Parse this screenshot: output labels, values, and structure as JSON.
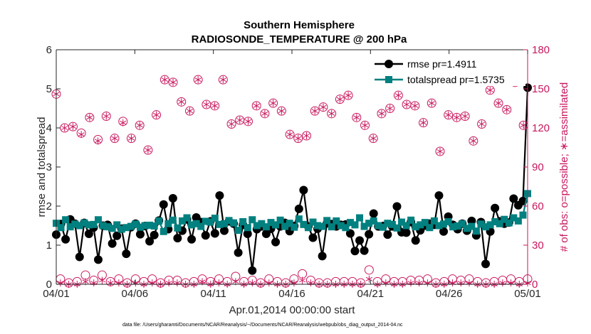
{
  "chart_data": {
    "type": "line",
    "title": "Southern Hemisphere",
    "subtitle": "RADIOSONDE_TEMPERATURE @ 200 hPa",
    "xlabel": "Apr.01,2014 00:00:00 start",
    "ylabel_left": "rmse and totalspread",
    "ylabel_right": "# of obs: o=possible; ∗=assimilated",
    "footnote": "data file: /Users/gharamti/Documents/NCAR/Reanalysis/~/Documents/NCAR/Reanalysis/webpub/obs_diag_output_2014-04.nc",
    "x_ticks": [
      "04/01",
      "04/06",
      "04/11",
      "04/16",
      "04/21",
      "04/26",
      "05/01"
    ],
    "x_tick_days": [
      0,
      5,
      10,
      15,
      20,
      25,
      30
    ],
    "xlim_days": [
      0,
      30
    ],
    "x_step_days": 0.25,
    "ylim_left": [
      0,
      6
    ],
    "y_ticks_left": [
      0,
      1,
      2,
      3,
      4,
      5,
      6
    ],
    "ylim_right": [
      0,
      180
    ],
    "y_ticks_right": [
      0,
      30,
      60,
      90,
      120,
      150,
      180
    ],
    "colors": {
      "rmse": "#000000",
      "totalspread": "#00807f",
      "obs": "#c8175d",
      "axis": "#262626"
    },
    "legend": {
      "placement": "top-right",
      "entries": [
        "rmse pr=1.4911",
        "totalspread pr=1.5735"
      ]
    },
    "series": [
      {
        "name": "rmse",
        "axis": "left",
        "values": [
          1.27,
          1.54,
          1.15,
          1.66,
          1.55,
          0.7,
          1.57,
          1.29,
          1.45,
          0.63,
          1.5,
          1.52,
          1.04,
          1.24,
          1.42,
          0.78,
          1.46,
          1.55,
          1.28,
          1.49,
          1.1,
          1.26,
          1.63,
          2.04,
          1.41,
          2.2,
          1.18,
          1.37,
          1.66,
          1.15,
          1.71,
          1.59,
          1.25,
          1.61,
          1.3,
          2.27,
          1.37,
          1.61,
          1.55,
          0.81,
          1.52,
          1.29,
          0.35,
          1.41,
          1.48,
          1.29,
          1.42,
          1.08,
          1.48,
          1.57,
          1.36,
          1.49,
          1.93,
          2.41,
          1.48,
          1.19,
          1.42,
          0.72,
          1.56,
          1.54,
          1.48,
          1.52,
          1.53,
          1.3,
          0.85,
          1.12,
          0.86,
          1.28,
          1.81,
          1.48,
          1.49,
          1.27,
          1.48,
          1.99,
          1.33,
          1.32,
          1.59,
          1.12,
          1.38,
          1.5,
          1.55,
          1.52,
          2.27,
          1.35,
          1.73,
          1.52,
          1.41,
          1.55,
          1.37,
          1.62,
          1.25,
          1.59,
          0.52,
          1.35,
          1.95,
          1.61,
          1.55,
          1.58,
          2.19,
          2.02,
          2.13,
          5.03
        ]
      },
      {
        "name": "totalspread",
        "axis": "left",
        "values": [
          1.56,
          1.45,
          1.65,
          1.47,
          1.54,
          1.5,
          1.57,
          1.52,
          1.53,
          1.65,
          1.5,
          1.47,
          1.43,
          1.52,
          1.41,
          1.45,
          1.48,
          1.54,
          1.46,
          1.5,
          1.51,
          1.49,
          1.62,
          1.35,
          1.55,
          1.64,
          1.44,
          1.62,
          1.7,
          1.52,
          1.55,
          1.48,
          1.61,
          1.59,
          1.69,
          1.53,
          1.55,
          1.63,
          1.57,
          1.38,
          1.6,
          1.45,
          1.65,
          1.5,
          1.55,
          1.47,
          1.58,
          1.52,
          1.64,
          1.48,
          1.56,
          1.46,
          1.67,
          1.53,
          1.45,
          1.59,
          1.5,
          1.48,
          1.63,
          1.47,
          1.62,
          1.5,
          1.45,
          1.58,
          1.52,
          1.7,
          1.48,
          1.56,
          1.62,
          1.5,
          1.46,
          1.56,
          1.53,
          1.44,
          1.59,
          1.5,
          1.64,
          1.47,
          1.52,
          1.58,
          1.45,
          1.62,
          1.5,
          1.54,
          1.6,
          1.47,
          1.49,
          1.55,
          1.43,
          1.48,
          1.36,
          1.54,
          1.47,
          1.52,
          1.6,
          1.55,
          1.66,
          1.57,
          1.7,
          1.62,
          1.77,
          2.32
        ]
      },
      {
        "name": "possible",
        "axis": "right",
        "marker": "circle",
        "values": [
          146,
          4,
          120,
          1,
          121,
          2,
          116,
          7,
          128,
          3,
          111,
          7,
          129,
          2,
          112,
          4,
          125,
          1,
          112,
          4,
          122,
          2,
          103,
          4,
          130,
          1,
          157,
          3,
          155,
          3,
          140,
          1,
          133,
          2,
          157,
          4,
          138,
          2,
          137,
          4,
          157,
          2,
          123,
          6,
          126,
          2,
          125,
          3,
          137,
          1,
          131,
          4,
          139,
          2,
          133,
          1,
          115,
          4,
          112,
          8,
          114,
          3,
          133,
          1,
          136,
          1,
          131,
          2,
          142,
          2,
          145,
          2,
          128,
          1,
          122,
          11,
          112,
          2,
          131,
          4,
          135,
          2,
          145,
          2,
          138,
          3,
          137,
          3,
          124,
          4,
          139,
          1,
          102,
          2,
          130,
          4,
          128,
          3,
          129,
          4,
          110,
          2,
          123,
          1,
          149,
          2,
          139,
          3,
          134,
          4,
          155,
          2,
          122,
          4
        ]
      },
      {
        "name": "assimilated",
        "axis": "right",
        "marker": "star",
        "values": [
          146,
          1,
          120,
          0,
          121,
          0,
          115,
          2,
          128,
          1,
          110,
          3,
          129,
          1,
          112,
          1,
          124,
          0,
          112,
          1,
          122,
          0,
          103,
          1,
          130,
          0,
          157,
          1,
          155,
          1,
          140,
          0,
          133,
          0,
          157,
          2,
          138,
          0,
          137,
          1,
          157,
          0,
          123,
          2,
          126,
          0,
          125,
          1,
          137,
          0,
          131,
          1,
          139,
          0,
          133,
          0,
          115,
          1,
          112,
          3,
          114,
          1,
          133,
          0,
          136,
          0,
          131,
          0,
          142,
          0,
          145,
          0,
          128,
          0,
          122,
          4,
          112,
          0,
          131,
          1,
          135,
          0,
          145,
          0,
          138,
          1,
          137,
          1,
          124,
          1,
          139,
          0,
          102,
          0,
          130,
          1,
          128,
          1,
          129,
          1,
          110,
          0,
          123,
          0,
          149,
          0,
          139,
          1,
          134,
          1,
          155,
          0,
          122,
          1
        ]
      }
    ]
  }
}
